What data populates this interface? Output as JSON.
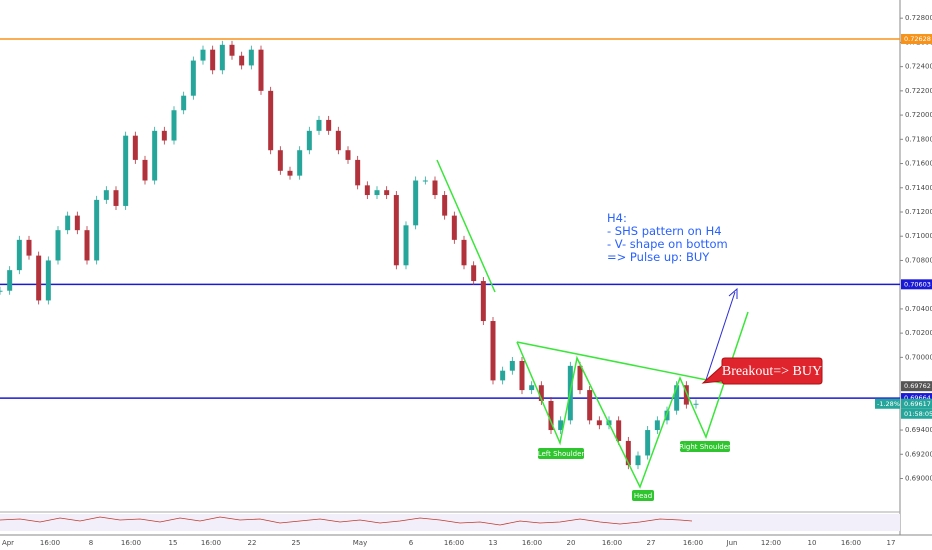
{
  "chart_data": {
    "type": "candlestick",
    "up_color": "#26a69a",
    "down_color": "#b2323c",
    "series": [
      {
        "values": [
          0.7055,
          0.7072,
          0.7097,
          0.7084,
          0.7047,
          0.708,
          0.7105,
          0.7117,
          0.7105,
          0.708,
          0.713,
          0.7138,
          0.7125,
          0.7183,
          0.7163,
          0.7146,
          0.7187,
          0.7179,
          0.7204,
          0.7216,
          0.7245,
          0.7254,
          0.7237,
          0.7258,
          0.7249,
          0.7241,
          0.7254,
          0.722,
          0.7171,
          0.7154,
          0.715,
          0.7171,
          0.7187,
          0.7196,
          0.7187,
          0.7171,
          0.7163,
          0.7142,
          0.7134,
          0.7138,
          0.7134,
          0.7076,
          0.7109,
          0.7146,
          0.7146,
          0.7134,
          0.7117,
          0.7097,
          0.7076,
          0.7063,
          0.703,
          0.6981,
          0.6989,
          0.6997,
          0.6973,
          0.6977,
          0.6964,
          0.694,
          0.6948,
          0.6993,
          0.6973,
          0.6948,
          0.6944,
          0.6948,
          0.6931,
          0.6911,
          0.6919,
          0.694,
          0.6948,
          0.6956,
          0.6977,
          0.6961,
          0.69617
        ]
      }
    ],
    "ylim": [
      0.6874,
      0.7295
    ],
    "yticks": [
      {
        "value": 0.728,
        "label": "0.72800"
      },
      {
        "value": 0.726,
        "label": "0.72600"
      },
      {
        "value": 0.724,
        "label": "0.72400"
      },
      {
        "value": 0.722,
        "label": "0.72200"
      },
      {
        "value": 0.72,
        "label": "0.72000"
      },
      {
        "value": 0.718,
        "label": "0.71800"
      },
      {
        "value": 0.716,
        "label": "0.71600"
      },
      {
        "value": 0.714,
        "label": "0.71400"
      },
      {
        "value": 0.712,
        "label": "0.71200"
      },
      {
        "value": 0.71,
        "label": "0.71000"
      },
      {
        "value": 0.708,
        "label": "0.70800"
      },
      {
        "value": 0.704,
        "label": "0.70400"
      },
      {
        "value": 0.702,
        "label": "0.70200"
      },
      {
        "value": 0.7,
        "label": "0.70000"
      },
      {
        "value": 0.694,
        "label": "0.69400"
      },
      {
        "value": 0.692,
        "label": "0.69200"
      },
      {
        "value": 0.69,
        "label": "0.69000"
      }
    ],
    "levels": [
      {
        "value": 0.72628,
        "label": "0.72628",
        "color": "#f7931a"
      },
      {
        "value": 0.70603,
        "label": "0.70603",
        "color": "#1a1ad6"
      },
      {
        "value": 0.69664,
        "label": "0.69664",
        "color": "#1a1ad6"
      }
    ],
    "tags": [
      {
        "value": 0.69762,
        "label": "0.69762",
        "color": "#555"
      },
      {
        "value": 0.69617,
        "label": "0.69617",
        "color": "#26a69a"
      }
    ],
    "change_label": "-1.28%",
    "countdown": "01:58:05",
    "xticks": [
      "Apr",
      "16:00",
      "8",
      "16:00",
      "15",
      "16:00",
      "22",
      "25",
      "May",
      "6",
      "16:00",
      "13",
      "16:00",
      "20",
      "16:00",
      "27",
      "16:00",
      "Jun",
      "12:00",
      "10",
      "16:00",
      "17"
    ],
    "note": [
      "H4:",
      "- SHS pattern on H4",
      "- V- shape on bottom",
      "=> Pulse up: BUY"
    ],
    "breakout": "Breakout=> BUY",
    "pattern_labels": [
      "Left Shoulder",
      "Head",
      "Right Shoulder"
    ]
  }
}
